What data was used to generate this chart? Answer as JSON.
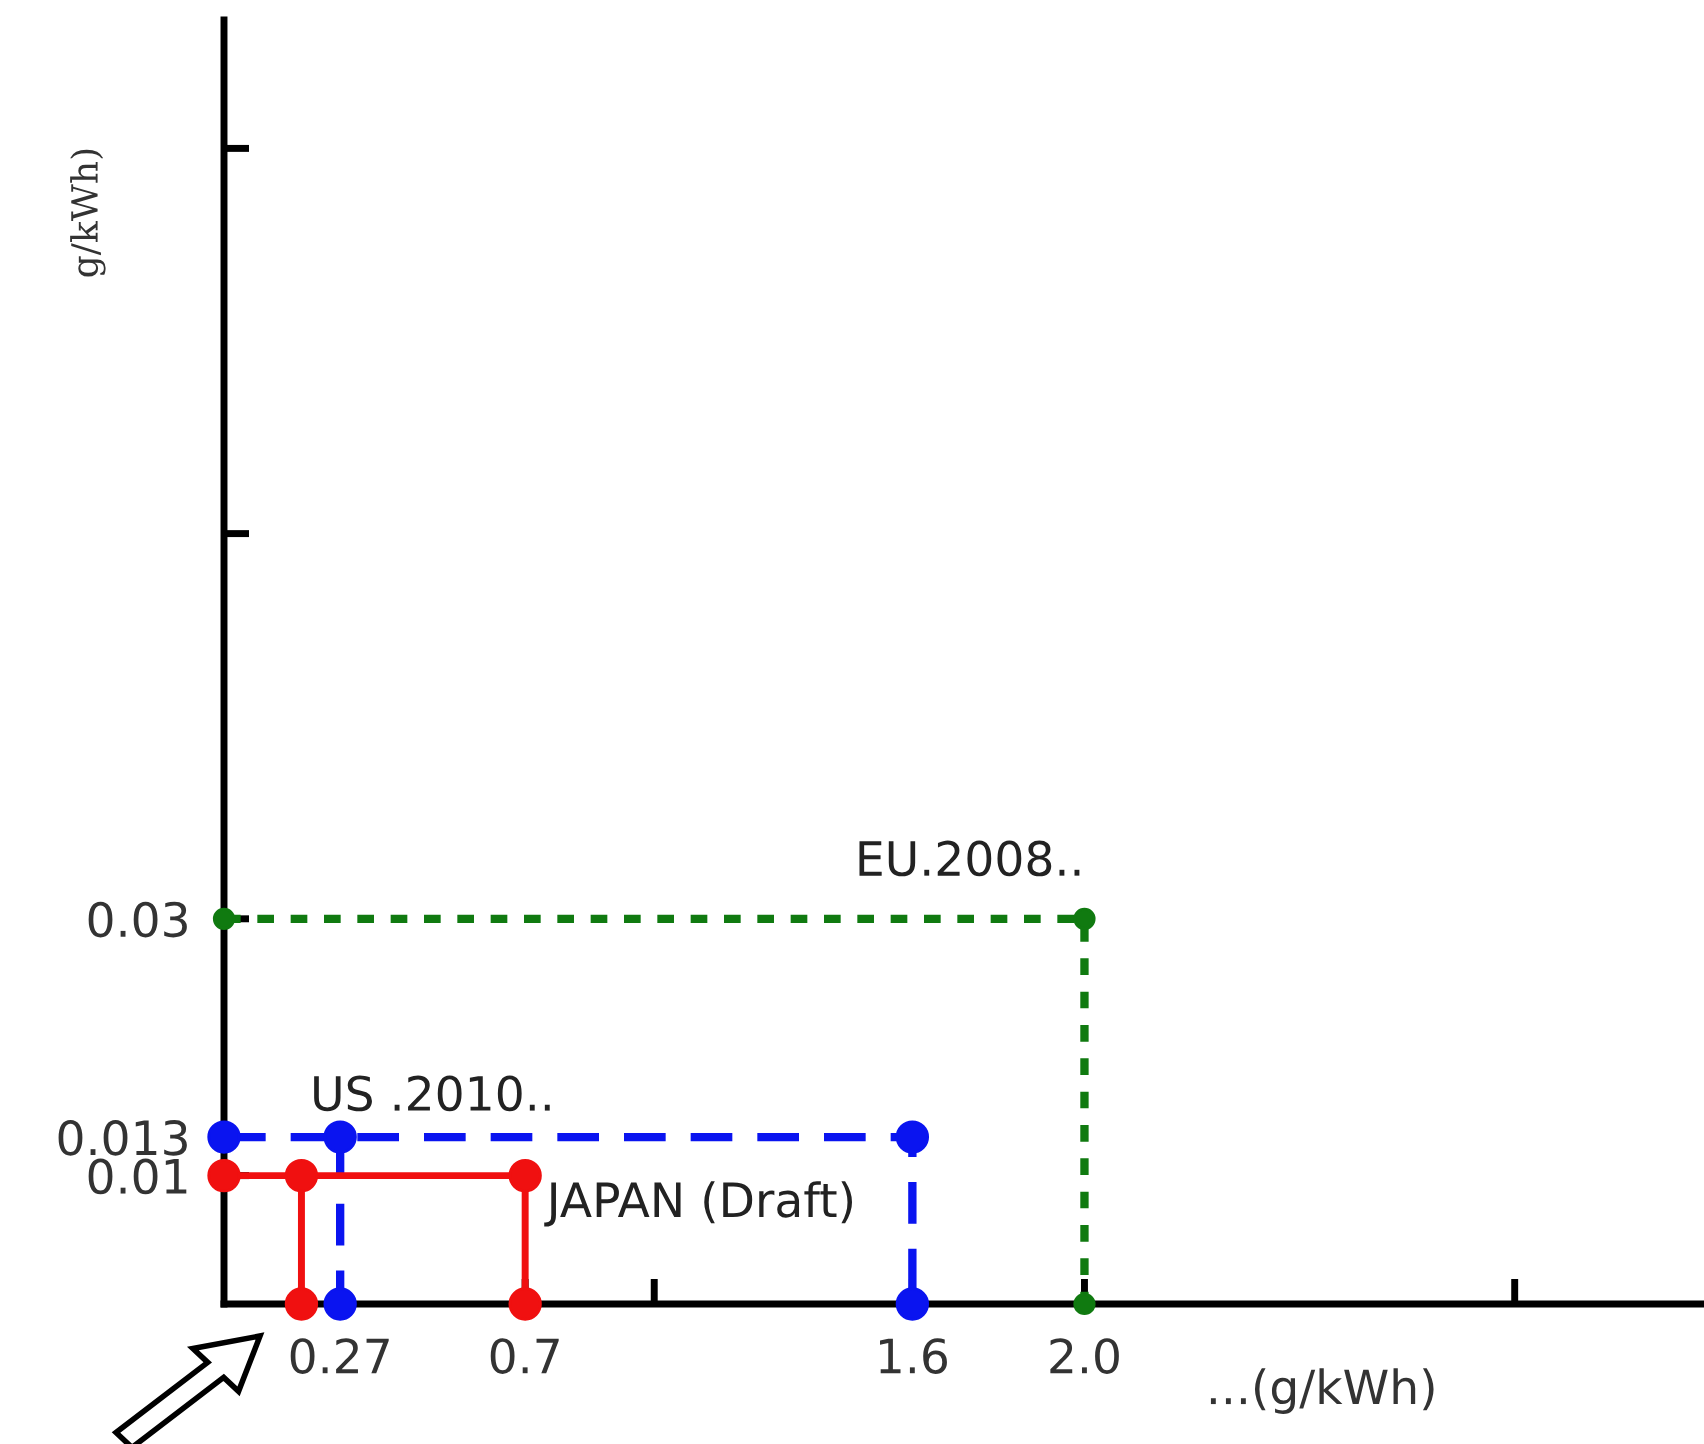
{
  "chart_data": {
    "type": "line",
    "xlabel": "...(g/kWh)",
    "ylabel": "g/kWh)",
    "series": [
      {
        "name": "EU.2008..",
        "color": "#107a10",
        "line_style": "dotted",
        "marker": "circle",
        "x": [
          0,
          2.0,
          2.0
        ],
        "values": [
          0.03,
          0.03,
          0
        ]
      },
      {
        "name": "US .2010..",
        "color": "#0a14f0",
        "line_style": "dashed",
        "marker": "circle",
        "x": [
          0,
          1.6,
          1.6,
          null,
          0.27,
          0.27
        ],
        "values": [
          0.013,
          0.013,
          0,
          null,
          0.013,
          0
        ]
      },
      {
        "name": "JAPAN (Draft)",
        "color": "#f01010",
        "line_style": "solid",
        "marker": "circle",
        "x": [
          0,
          0.7,
          0.7,
          null,
          0.18,
          0.18
        ],
        "values": [
          0.01,
          0.01,
          0,
          null,
          0.01,
          0
        ]
      }
    ],
    "xlim": [
      0,
      3.44
    ],
    "ylim": [
      0,
      0.1
    ],
    "xticks": [
      0.27,
      0.7,
      {
        "value": 1.0,
        "label": null
      },
      1.6,
      "2.0",
      {
        "value": 3.0,
        "label": null
      }
    ],
    "yticks": [
      0.01,
      0.013,
      0.03,
      {
        "value": 0.06,
        "label": null
      },
      {
        "value": 0.09,
        "label": null
      }
    ],
    "grid": false,
    "legend": false
  }
}
